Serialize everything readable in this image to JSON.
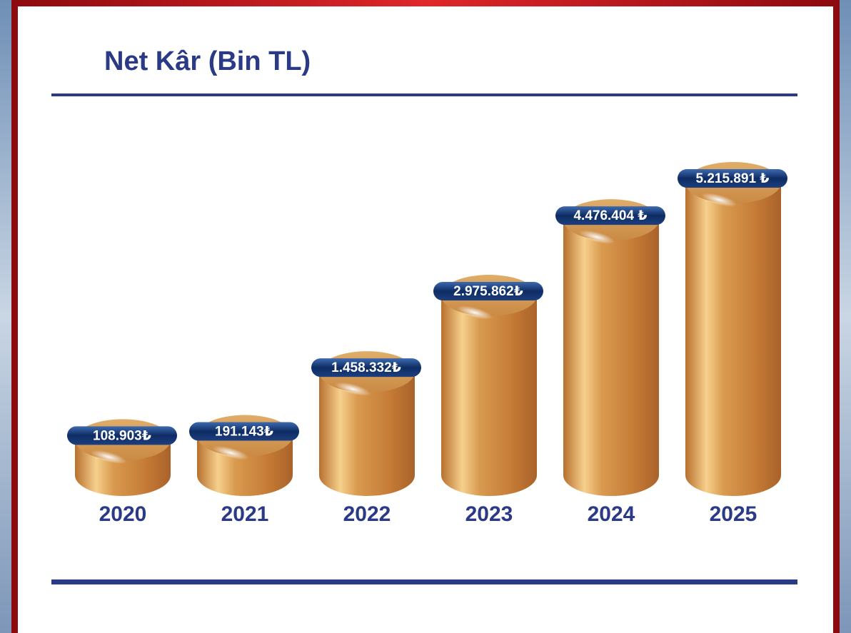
{
  "chart_data": {
    "type": "bar",
    "title": "Net Kâr (Bin TL)",
    "categories": [
      "2020",
      "2021",
      "2022",
      "2023",
      "2024",
      "2025"
    ],
    "values": [
      108903,
      191143,
      1458332,
      2975862,
      4476404,
      5215891
    ],
    "value_labels": [
      "108.903₺",
      "191.143₺",
      "1.458.332₺",
      "2.975.862₺",
      "4.476.404 ₺",
      "5.215.891 ₺"
    ],
    "color": "#d99a4f"
  }
}
